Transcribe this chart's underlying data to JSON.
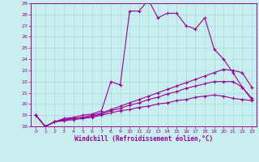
{
  "xlabel": "Windchill (Refroidissement éolien,°C)",
  "bg_color": "#c8eef0",
  "line_color": "#990099",
  "grid_color": "#a8d8dc",
  "xlim": [
    -0.5,
    23.5
  ],
  "ylim": [
    18,
    29
  ],
  "xticks": [
    0,
    1,
    2,
    3,
    4,
    5,
    6,
    7,
    8,
    9,
    10,
    11,
    12,
    13,
    14,
    15,
    16,
    17,
    18,
    19,
    20,
    21,
    22,
    23
  ],
  "yticks": [
    18,
    19,
    20,
    21,
    22,
    23,
    24,
    25,
    26,
    27,
    28,
    29
  ],
  "line1_x": [
    0,
    1,
    2,
    3,
    4,
    5,
    6,
    7,
    8,
    9,
    10,
    11,
    12,
    13,
    14,
    15,
    16,
    17,
    18,
    19,
    20,
    21,
    22,
    23
  ],
  "line1_y": [
    19,
    18,
    18.4,
    18.7,
    18.8,
    19.0,
    19.1,
    19.4,
    22.0,
    21.7,
    28.3,
    28.3,
    29.3,
    27.7,
    28.1,
    28.1,
    27.0,
    26.7,
    27.7,
    24.9,
    24.0,
    22.8,
    21.5,
    20.5
  ],
  "line2_x": [
    0,
    1,
    2,
    3,
    4,
    5,
    6,
    7,
    8,
    9,
    10,
    11,
    12,
    13,
    14,
    15,
    16,
    17,
    18,
    19,
    20,
    21,
    22,
    23
  ],
  "line2_y": [
    19,
    18,
    18.4,
    18.6,
    18.7,
    18.8,
    19.0,
    19.2,
    19.5,
    19.8,
    20.1,
    20.4,
    20.7,
    21.0,
    21.3,
    21.6,
    21.9,
    22.2,
    22.5,
    22.8,
    23.1,
    23.0,
    22.8,
    21.5
  ],
  "line3_x": [
    0,
    1,
    2,
    3,
    4,
    5,
    6,
    7,
    8,
    9,
    10,
    11,
    12,
    13,
    14,
    15,
    16,
    17,
    18,
    19,
    20,
    21,
    22,
    23
  ],
  "line3_y": [
    19,
    18,
    18.4,
    18.6,
    18.7,
    18.8,
    18.9,
    19.1,
    19.4,
    19.6,
    19.9,
    20.1,
    20.4,
    20.6,
    20.9,
    21.1,
    21.4,
    21.6,
    21.8,
    22.0,
    22.0,
    22.0,
    21.5,
    20.4
  ],
  "line4_x": [
    0,
    1,
    2,
    3,
    4,
    5,
    6,
    7,
    8,
    9,
    10,
    11,
    12,
    13,
    14,
    15,
    16,
    17,
    18,
    19,
    20,
    21,
    22,
    23
  ],
  "line4_y": [
    19,
    18,
    18.4,
    18.5,
    18.6,
    18.7,
    18.8,
    19.0,
    19.2,
    19.4,
    19.5,
    19.7,
    19.8,
    20.0,
    20.1,
    20.3,
    20.4,
    20.6,
    20.7,
    20.8,
    20.7,
    20.5,
    20.4,
    20.3
  ]
}
